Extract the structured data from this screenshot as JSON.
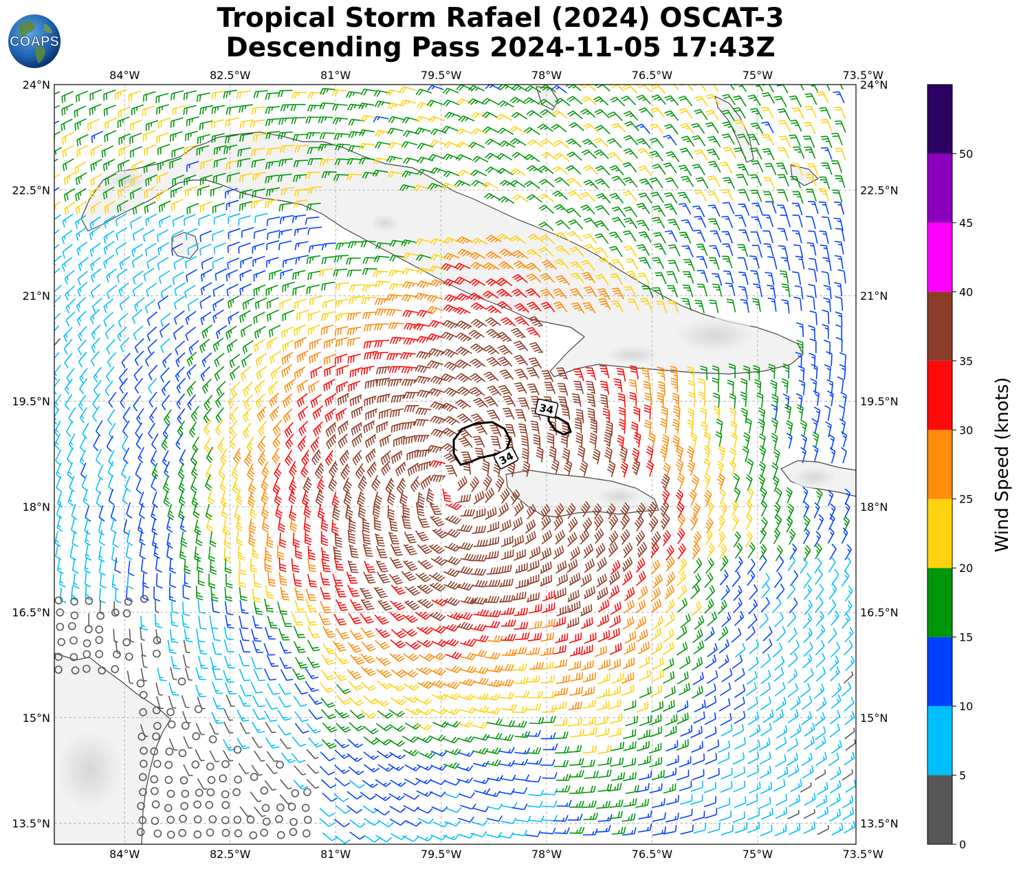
{
  "title": {
    "line1": "Tropical Storm Rafael (2024) OSCAT-3",
    "line2": "Descending Pass 2024-11-05 17:43Z"
  },
  "logo": {
    "text": "COAPS"
  },
  "map": {
    "lon_range": [
      -85.0,
      -73.6
    ],
    "lat_range": [
      13.2,
      24.0
    ],
    "lon_ticks": [
      {
        "value": -84.0,
        "label": "84°W"
      },
      {
        "value": -82.5,
        "label": "82.5°W"
      },
      {
        "value": -81.0,
        "label": "81°W"
      },
      {
        "value": -79.5,
        "label": "79.5°W"
      },
      {
        "value": -78.0,
        "label": "78°W"
      },
      {
        "value": -76.5,
        "label": "76.5°W"
      },
      {
        "value": -75.0,
        "label": "75°W"
      },
      {
        "value": -73.5,
        "label": "73.5°W"
      }
    ],
    "lat_ticks": [
      {
        "value": 24.0,
        "label": "24°N"
      },
      {
        "value": 22.5,
        "label": "22.5°N"
      },
      {
        "value": 21.0,
        "label": "21°N"
      },
      {
        "value": 19.5,
        "label": "19.5°N"
      },
      {
        "value": 18.0,
        "label": "18°N"
      },
      {
        "value": 16.5,
        "label": "16.5°N"
      },
      {
        "value": 15.0,
        "label": "15°N"
      },
      {
        "value": 13.5,
        "label": "13.5°N"
      }
    ],
    "storm_center": {
      "lon": -79.4,
      "lat": 18.3
    },
    "contour_label": "34",
    "contour_labels": [
      {
        "lon": -77.8,
        "lat": 19.4
      },
      {
        "lon": -78.35,
        "lat": 18.7
      }
    ]
  },
  "colorbar": {
    "label": "Wind Speed (knots)",
    "bounds": [
      0,
      5,
      10,
      15,
      20,
      25,
      30,
      35,
      40,
      45,
      50,
      55
    ],
    "colors": [
      "#575757",
      "#00bfff",
      "#0040ff",
      "#00960a",
      "#ffd20f",
      "#ff8c0a",
      "#ff0a0a",
      "#8c3c28",
      "#ff00ff",
      "#8c00be",
      "#2d0064"
    ],
    "ticks": [
      "0",
      "5",
      "10",
      "15",
      "20",
      "25",
      "30",
      "35",
      "40",
      "45",
      "50"
    ]
  }
}
